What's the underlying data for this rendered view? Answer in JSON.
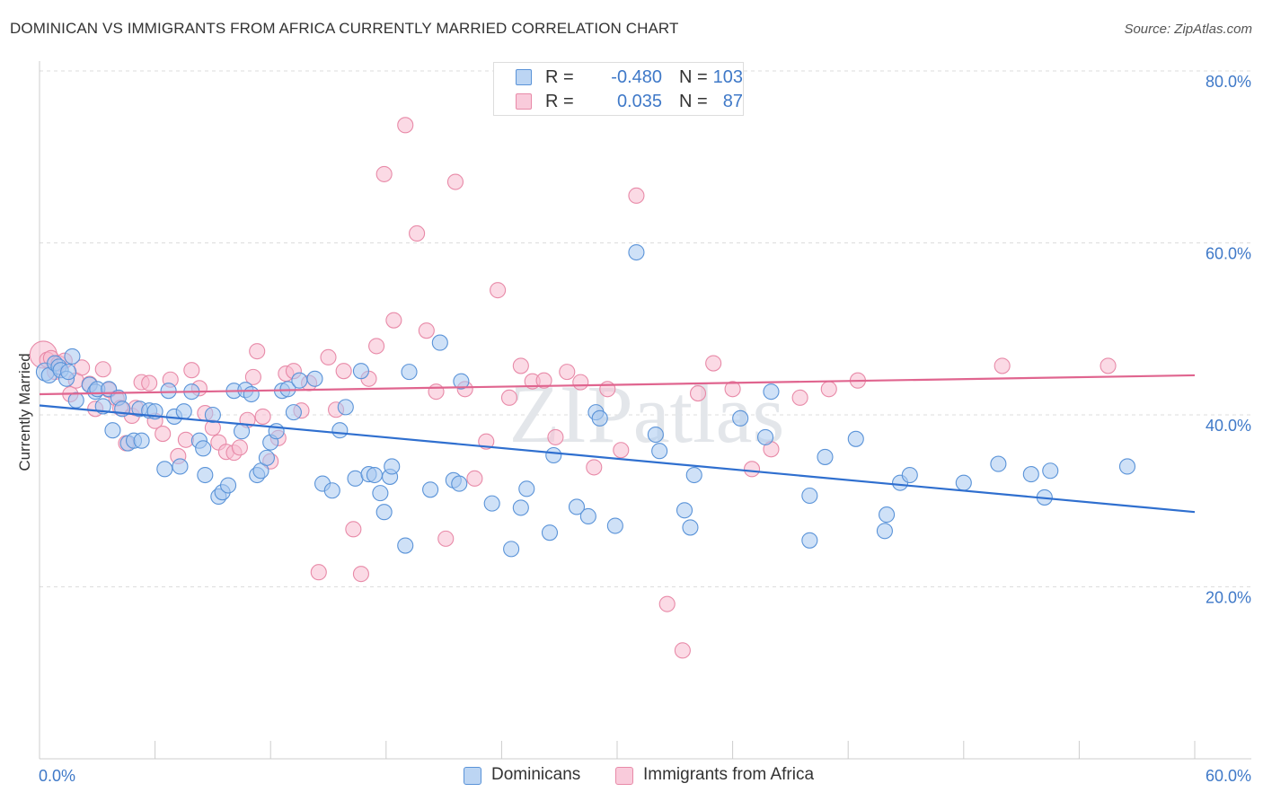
{
  "title": "DOMINICAN VS IMMIGRANTS FROM AFRICA CURRENTLY MARRIED CORRELATION CHART",
  "source": "Source: ZipAtlas.com",
  "watermark": "ZIPatlas",
  "legend_stats": {
    "r_label": "R =",
    "n_label": "N =",
    "rows": [
      {
        "r": "-0.480",
        "n": "103"
      },
      {
        "r": "0.035",
        "n": "87"
      }
    ]
  },
  "legend_series": [
    "Dominicans",
    "Immigrants from Africa"
  ],
  "colors": {
    "dominicans_fill": "#a8c8f0",
    "dominicans_stroke": "#5a93d8",
    "dominicans_line": "#2f6fcf",
    "africa_fill": "#f7bcd0",
    "africa_stroke": "#e88aa8",
    "africa_line": "#e0658f",
    "axis_text": "#3f79c8",
    "grid": "#dcdcdc"
  },
  "chart_data": {
    "type": "scatter",
    "title": "DOMINICAN VS IMMIGRANTS FROM AFRICA CURRENTLY MARRIED CORRELATION CHART",
    "xlabel": "",
    "ylabel": "Currently Married",
    "xlim": [
      0,
      60
    ],
    "ylim": [
      0,
      85
    ],
    "x_tick_labels": [
      "0.0%",
      "60.0%"
    ],
    "y_ticks": [
      20,
      40,
      60,
      80
    ],
    "y_tick_labels": [
      "20.0%",
      "40.0%",
      "60.0%",
      "80.0%"
    ],
    "grid": true,
    "legend_position": "top-center",
    "series": [
      {
        "name": "Dominicans",
        "R": -0.48,
        "N": 103,
        "trend": {
          "x": [
            0,
            60
          ],
          "y": [
            41.1,
            28.7
          ]
        },
        "points": [
          [
            0.3,
            45.0
          ],
          [
            0.5,
            44.6
          ],
          [
            0.8,
            46.0
          ],
          [
            1.0,
            45.6
          ],
          [
            1.1,
            45.2
          ],
          [
            1.4,
            44.2
          ],
          [
            1.5,
            45.0
          ],
          [
            1.7,
            46.8
          ],
          [
            1.9,
            41.7
          ],
          [
            2.6,
            43.5
          ],
          [
            2.9,
            42.7
          ],
          [
            3.0,
            43.0
          ],
          [
            3.3,
            41.0
          ],
          [
            3.6,
            43.0
          ],
          [
            3.8,
            38.2
          ],
          [
            4.1,
            42.0
          ],
          [
            4.3,
            40.7
          ],
          [
            4.6,
            36.7
          ],
          [
            4.9,
            37.0
          ],
          [
            5.2,
            40.7
          ],
          [
            5.3,
            37.0
          ],
          [
            5.7,
            40.5
          ],
          [
            6.0,
            40.4
          ],
          [
            6.5,
            33.7
          ],
          [
            6.7,
            42.8
          ],
          [
            7.0,
            39.8
          ],
          [
            7.3,
            34.0
          ],
          [
            7.5,
            40.4
          ],
          [
            7.9,
            42.7
          ],
          [
            8.3,
            37.0
          ],
          [
            8.5,
            36.1
          ],
          [
            8.6,
            33.0
          ],
          [
            9.0,
            40.0
          ],
          [
            9.3,
            30.5
          ],
          [
            9.5,
            31.0
          ],
          [
            9.8,
            31.8
          ],
          [
            10.1,
            42.8
          ],
          [
            10.5,
            38.1
          ],
          [
            10.7,
            42.9
          ],
          [
            11.0,
            42.4
          ],
          [
            11.3,
            33.0
          ],
          [
            11.5,
            33.5
          ],
          [
            11.8,
            35.0
          ],
          [
            12.0,
            36.8
          ],
          [
            12.3,
            38.1
          ],
          [
            12.6,
            42.8
          ],
          [
            12.9,
            43.0
          ],
          [
            13.2,
            40.3
          ],
          [
            13.5,
            44.0
          ],
          [
            14.3,
            44.2
          ],
          [
            14.7,
            32.0
          ],
          [
            15.2,
            31.2
          ],
          [
            15.6,
            38.2
          ],
          [
            15.9,
            40.9
          ],
          [
            16.4,
            32.6
          ],
          [
            16.7,
            45.1
          ],
          [
            17.1,
            33.1
          ],
          [
            17.4,
            33.0
          ],
          [
            17.7,
            30.9
          ],
          [
            17.9,
            28.7
          ],
          [
            18.2,
            32.8
          ],
          [
            18.3,
            34.0
          ],
          [
            19.0,
            24.8
          ],
          [
            19.2,
            45.0
          ],
          [
            20.3,
            31.3
          ],
          [
            20.8,
            48.4
          ],
          [
            21.5,
            32.4
          ],
          [
            21.8,
            32.0
          ],
          [
            21.9,
            43.9
          ],
          [
            23.5,
            29.7
          ],
          [
            24.5,
            24.4
          ],
          [
            25.0,
            29.2
          ],
          [
            25.3,
            31.4
          ],
          [
            26.5,
            26.3
          ],
          [
            26.7,
            35.3
          ],
          [
            27.9,
            29.3
          ],
          [
            28.5,
            28.2
          ],
          [
            28.9,
            40.3
          ],
          [
            29.1,
            39.6
          ],
          [
            29.9,
            27.1
          ],
          [
            31.0,
            58.9
          ],
          [
            32.0,
            37.7
          ],
          [
            32.2,
            35.8
          ],
          [
            33.5,
            28.9
          ],
          [
            33.8,
            26.9
          ],
          [
            34.0,
            33.0
          ],
          [
            36.4,
            39.6
          ],
          [
            37.7,
            37.4
          ],
          [
            38.0,
            42.7
          ],
          [
            40.0,
            30.6
          ],
          [
            40.0,
            25.4
          ],
          [
            40.8,
            35.1
          ],
          [
            42.4,
            37.2
          ],
          [
            43.9,
            26.5
          ],
          [
            44.0,
            28.4
          ],
          [
            44.7,
            32.1
          ],
          [
            45.2,
            33.0
          ],
          [
            48.0,
            32.1
          ],
          [
            49.8,
            34.3
          ],
          [
            51.5,
            33.1
          ],
          [
            52.2,
            30.4
          ],
          [
            52.5,
            33.5
          ],
          [
            56.5,
            34.0
          ]
        ]
      },
      {
        "name": "Immigrants from Africa",
        "R": 0.035,
        "N": 87,
        "trend": {
          "x": [
            0,
            60
          ],
          "y": [
            42.4,
            44.6
          ]
        },
        "points": [
          [
            0.2,
            47.0
          ],
          [
            0.4,
            46.4
          ],
          [
            0.6,
            46.6
          ],
          [
            0.8,
            45.0
          ],
          [
            1.0,
            46.0
          ],
          [
            1.3,
            46.3
          ],
          [
            1.6,
            42.4
          ],
          [
            1.9,
            44.0
          ],
          [
            2.2,
            45.5
          ],
          [
            2.6,
            43.6
          ],
          [
            2.9,
            40.7
          ],
          [
            3.3,
            45.3
          ],
          [
            3.6,
            42.9
          ],
          [
            4.0,
            41.9
          ],
          [
            4.2,
            40.8
          ],
          [
            4.5,
            36.7
          ],
          [
            4.8,
            39.9
          ],
          [
            5.0,
            40.8
          ],
          [
            5.3,
            43.8
          ],
          [
            5.7,
            43.7
          ],
          [
            6.0,
            39.3
          ],
          [
            6.4,
            37.8
          ],
          [
            6.8,
            44.1
          ],
          [
            7.2,
            35.2
          ],
          [
            7.6,
            37.1
          ],
          [
            7.9,
            45.2
          ],
          [
            8.3,
            43.1
          ],
          [
            8.6,
            40.2
          ],
          [
            9.0,
            38.5
          ],
          [
            9.3,
            36.8
          ],
          [
            9.7,
            35.7
          ],
          [
            10.1,
            35.6
          ],
          [
            10.4,
            36.2
          ],
          [
            10.8,
            39.4
          ],
          [
            11.1,
            44.4
          ],
          [
            11.3,
            47.4
          ],
          [
            11.6,
            39.8
          ],
          [
            12.0,
            34.6
          ],
          [
            12.4,
            37.3
          ],
          [
            12.8,
            44.8
          ],
          [
            13.2,
            45.1
          ],
          [
            13.6,
            40.5
          ],
          [
            14.0,
            43.7
          ],
          [
            14.5,
            21.7
          ],
          [
            15.0,
            46.7
          ],
          [
            15.4,
            40.6
          ],
          [
            15.8,
            45.1
          ],
          [
            16.3,
            26.7
          ],
          [
            16.7,
            21.5
          ],
          [
            17.1,
            44.2
          ],
          [
            17.5,
            48.0
          ],
          [
            17.9,
            68.0
          ],
          [
            18.4,
            51.0
          ],
          [
            19.0,
            73.7
          ],
          [
            19.6,
            61.1
          ],
          [
            20.1,
            49.8
          ],
          [
            20.6,
            42.7
          ],
          [
            21.1,
            25.6
          ],
          [
            21.6,
            67.1
          ],
          [
            22.1,
            43.0
          ],
          [
            22.6,
            32.6
          ],
          [
            23.2,
            36.9
          ],
          [
            23.8,
            54.5
          ],
          [
            24.4,
            42.0
          ],
          [
            25.0,
            45.7
          ],
          [
            25.6,
            43.9
          ],
          [
            26.2,
            44.0
          ],
          [
            26.8,
            37.4
          ],
          [
            27.4,
            45.0
          ],
          [
            28.1,
            43.8
          ],
          [
            28.8,
            33.9
          ],
          [
            29.5,
            43.0
          ],
          [
            30.2,
            35.9
          ],
          [
            31.0,
            65.5
          ],
          [
            31.8,
            79.1
          ],
          [
            32.6,
            18.0
          ],
          [
            33.4,
            12.6
          ],
          [
            34.2,
            42.5
          ],
          [
            35.0,
            46.0
          ],
          [
            36.0,
            43.0
          ],
          [
            37.0,
            33.7
          ],
          [
            38.0,
            36.0
          ],
          [
            39.5,
            42.0
          ],
          [
            41.0,
            43.0
          ],
          [
            42.5,
            44.0
          ],
          [
            50.0,
            45.7
          ],
          [
            55.5,
            45.7
          ]
        ]
      }
    ]
  }
}
